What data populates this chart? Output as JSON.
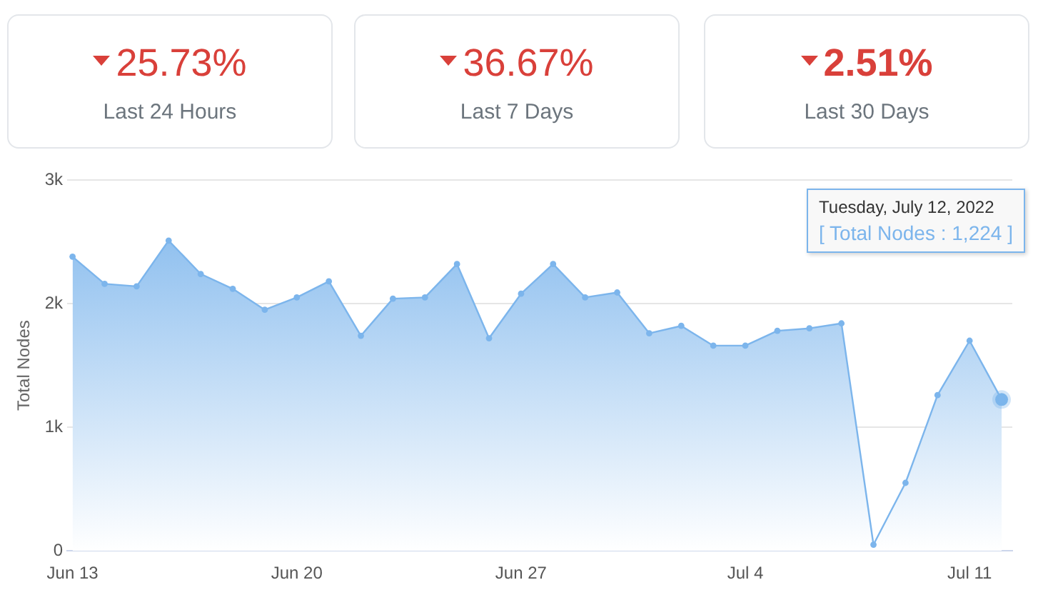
{
  "chart_data": [
    {
      "type": "other",
      "title": "25.73%",
      "subtitle": "Last 24 Hours",
      "color": "#d9403a"
    },
    {
      "type": "other",
      "title": "36.67%",
      "subtitle": "Last 7 Days",
      "color": "#d9403a"
    },
    {
      "type": "other",
      "title": "2.51%",
      "subtitle": "Last 30 Days",
      "color": "#d9403a"
    },
    {
      "type": "area",
      "ylabel": "Total Nodes",
      "color": "#7cb5ec",
      "marker": "circle",
      "grid": "y",
      "legend": false,
      "x": [
        "2022-06-13",
        "2022-06-14",
        "2022-06-15",
        "2022-06-16",
        "2022-06-17",
        "2022-06-18",
        "2022-06-19",
        "2022-06-20",
        "2022-06-21",
        "2022-06-22",
        "2022-06-23",
        "2022-06-24",
        "2022-06-25",
        "2022-06-26",
        "2022-06-27",
        "2022-06-28",
        "2022-06-29",
        "2022-06-30",
        "2022-07-01",
        "2022-07-02",
        "2022-07-03",
        "2022-07-04",
        "2022-07-05",
        "2022-07-06",
        "2022-07-07",
        "2022-07-08",
        "2022-07-09",
        "2022-07-10",
        "2022-07-11",
        "2022-07-12"
      ],
      "values": [
        2380,
        2160,
        2140,
        2510,
        2240,
        2120,
        1950,
        2050,
        2180,
        1740,
        2040,
        2050,
        2320,
        1720,
        2080,
        2320,
        2050,
        2090,
        1760,
        1820,
        1660,
        1660,
        1780,
        1800,
        1840,
        50,
        550,
        1260,
        1700,
        1224
      ],
      "xlim": [
        "2022-06-12T20:00",
        "2022-07-12T08:00"
      ],
      "xticks": [
        {
          "value": "2022-06-13",
          "label": "Jun 13"
        },
        {
          "value": "2022-06-20",
          "label": "Jun 20"
        },
        {
          "value": "2022-06-27",
          "label": "Jun 27"
        },
        {
          "value": "2022-07-04",
          "label": "Jul 4"
        },
        {
          "value": "2022-07-11",
          "label": "Jul 11"
        }
      ],
      "ylim": [
        0,
        3000
      ],
      "yticks": [
        0,
        {
          "value": 1000,
          "label": "1k"
        },
        {
          "value": 2000,
          "label": "2k"
        },
        {
          "value": 3000,
          "label": "3k"
        }
      ],
      "annotations": [
        "Tuesday, July 12, 2022",
        "[ Total Nodes : 1,224 ]"
      ]
    }
  ]
}
